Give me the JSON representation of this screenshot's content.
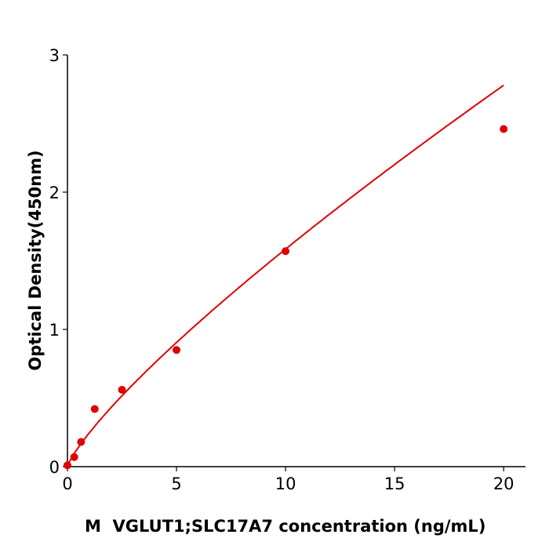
{
  "chart_data": {
    "type": "scatter",
    "title": "",
    "xlabel": "M  VGLUT1;SLC17A7 concentration (ng/mL)",
    "ylabel": "Optical Density(450nm)",
    "xlim": [
      0,
      21
    ],
    "ylim": [
      0,
      3
    ],
    "xticks": [
      0,
      5,
      10,
      15,
      20
    ],
    "yticks": [
      0,
      1,
      2,
      3
    ],
    "grid": false,
    "points": [
      {
        "x": 0,
        "y": 0.01
      },
      {
        "x": 0.3125,
        "y": 0.07
      },
      {
        "x": 0.625,
        "y": 0.18
      },
      {
        "x": 1.25,
        "y": 0.42
      },
      {
        "x": 2.5,
        "y": 0.56
      },
      {
        "x": 5,
        "y": 0.85
      },
      {
        "x": 10,
        "y": 1.57
      },
      {
        "x": 20,
        "y": 2.46
      }
    ],
    "fit_curve": true,
    "color": "#e00000"
  }
}
